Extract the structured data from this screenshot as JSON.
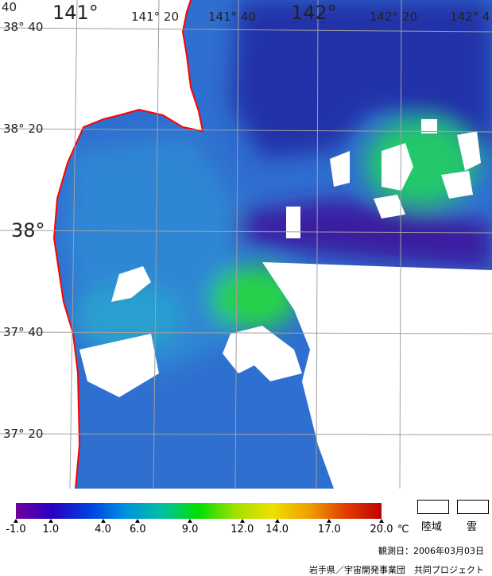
{
  "map": {
    "longitude_labels": [
      {
        "text": "141°",
        "size": "big"
      },
      {
        "text": "141° 20",
        "size": "small"
      },
      {
        "text": "141° 40",
        "size": "small"
      },
      {
        "text": "142°",
        "size": "big"
      },
      {
        "text": "142° 20",
        "size": "small"
      },
      {
        "text": "142° 4",
        "size": "small"
      }
    ],
    "latitude_labels": [
      {
        "text": "38° 40",
        "size": "small"
      },
      {
        "text": "38° 20",
        "size": "small"
      },
      {
        "text": "38°",
        "size": "big"
      },
      {
        "text": "37° 40",
        "size": "small"
      },
      {
        "text": "37° 20",
        "size": "small"
      }
    ],
    "corner_label": "40",
    "colors": {
      "land": "#ffffff",
      "coastline": "#ff0000",
      "grid": "#a0a0a0",
      "sea_cold": "#3a1fa0",
      "sea_mid": "#2f6fd0",
      "sea_warm": "#20d020"
    }
  },
  "legend": {
    "colorbar_colors": [
      "#7000a0",
      "#2a00c0",
      "#0040e0",
      "#0090e0",
      "#00c0a0",
      "#00e000",
      "#a0e000",
      "#f0e000",
      "#f0a000",
      "#e04000",
      "#c00000"
    ],
    "range": [
      -1.0,
      20.0
    ],
    "ticks": [
      "-1.0",
      "1.0",
      "4.0",
      "6.0",
      "9.0",
      "12.0",
      "14.0",
      "17.0",
      "20.0"
    ],
    "unit": "℃",
    "land_label": "陸域",
    "cloud_label": "雲",
    "observation_date": "観測日：2006年03月03日",
    "organization": "岩手県／宇宙開発事業団　共同プロジェクト"
  }
}
